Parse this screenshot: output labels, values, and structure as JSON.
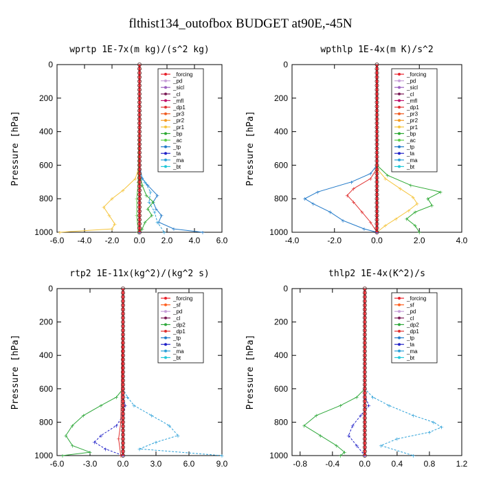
{
  "figure_title": "flthist134_outofbox  BUDGET at90E,-45N",
  "colors": {
    "forcing": "#e8202a",
    "pd": "#c79ed8",
    "sicl": "#9b5fc0",
    "cl": "#7a1a55",
    "mfl": "#c0106a",
    "dp1": "#e03030",
    "pr3": "#f05a20",
    "pr2": "#f59a20",
    "pr1": "#f5c43a",
    "bp": "#2aa830",
    "ac": "#5acd4a",
    "tp": "#1f78c8",
    "ta": "#2020c8",
    "ma": "#2aa0d8",
    "bt": "#20c8d8",
    "sf": "#ff6020",
    "dp2": "#2ea83a"
  },
  "chart_data": [
    {
      "type": "line",
      "title": "wprtp  1E-7x(m kg)/(s^2 kg)",
      "ylabel": "Pressure [hPa]",
      "xlim": [
        -6,
        6
      ],
      "ylim": [
        1000,
        0
      ],
      "xticks": [
        "-6.0",
        "-4.0",
        "-2.0",
        "0.0",
        "2.0",
        "4.0",
        "6.0"
      ],
      "xtick_values": [
        -6,
        -4,
        -2,
        0,
        2,
        4,
        6
      ],
      "yticks": [
        "0",
        "200",
        "400",
        "600",
        "800",
        "1000"
      ],
      "legend": [
        "_forcing",
        "_pd",
        "_sicl",
        "_cl",
        "_mfl",
        "_dp1",
        "_pr3",
        "_pr2",
        "_pr1",
        "_bp",
        "_ac",
        "_tp",
        "_ta",
        "_ma",
        "_bt"
      ],
      "series": [
        {
          "key": "pr1",
          "p": [
            0,
            600,
            680,
            750,
            800,
            850,
            900,
            950,
            980,
            1000
          ],
          "x": [
            0,
            0,
            -0.3,
            -1.2,
            -2.0,
            -2.6,
            -2.2,
            -1.8,
            -2.0,
            -5.8
          ]
        },
        {
          "key": "tp",
          "p": [
            0,
            600,
            680,
            720,
            780,
            820,
            860,
            900,
            940,
            980,
            1000
          ],
          "x": [
            0,
            0,
            0.2,
            0.6,
            1.3,
            1.0,
            1.2,
            1.6,
            1.4,
            2.5,
            4.6
          ]
        },
        {
          "key": "ma",
          "p": [
            0,
            640,
            700,
            760,
            820,
            880,
            940,
            1000
          ],
          "x": [
            0,
            0,
            0.4,
            0.8,
            0.7,
            1.1,
            1.3,
            1.8
          ]
        },
        {
          "key": "bp",
          "p": [
            0,
            650,
            720,
            780,
            820,
            860,
            900,
            940,
            980,
            1000
          ],
          "x": [
            0,
            0,
            0.2,
            0.5,
            1.0,
            0.6,
            0.9,
            0.4,
            0.2,
            0
          ]
        },
        {
          "key": "ac",
          "p": [
            0,
            700,
            800,
            900,
            1000
          ],
          "x": [
            0,
            -0.1,
            -0.2,
            -0.2,
            -0.1
          ]
        },
        {
          "key": "ta",
          "p": [
            0,
            1000
          ],
          "x": [
            0,
            0
          ]
        },
        {
          "key": "forcing",
          "p": [
            0,
            1000
          ],
          "x": [
            0,
            0
          ]
        }
      ]
    },
    {
      "type": "line",
      "title": "wpthlp  1E-4x(m K)/s^2",
      "ylabel": "Pressure [hPa]",
      "xlim": [
        -4,
        4
      ],
      "ylim": [
        1000,
        0
      ],
      "xticks": [
        "-4.0",
        "-2.0",
        "0.0",
        "2.0",
        "4.0"
      ],
      "xtick_values": [
        -4,
        -2,
        0,
        2,
        4
      ],
      "yticks": [
        "0",
        "200",
        "400",
        "600",
        "800",
        "1000"
      ],
      "legend": [
        "_forcing",
        "_pd",
        "_sicl",
        "_cl",
        "_mfl",
        "_dp1",
        "_pr3",
        "_pr2",
        "_pr1",
        "_bp",
        "_ac",
        "_tp",
        "_ta",
        "_ma",
        "_bt"
      ],
      "series": [
        {
          "key": "tp",
          "p": [
            0,
            600,
            650,
            700,
            760,
            800,
            830,
            880,
            930,
            980,
            1000
          ],
          "x": [
            0,
            0,
            -0.3,
            -1.2,
            -2.8,
            -3.4,
            -3.0,
            -2.2,
            -1.6,
            -0.6,
            0
          ]
        },
        {
          "key": "dp1",
          "p": [
            0,
            620,
            680,
            740,
            780,
            820,
            880,
            940,
            1000
          ],
          "x": [
            0,
            0,
            -0.3,
            -1.1,
            -1.4,
            -1.1,
            -0.7,
            -0.3,
            0
          ]
        },
        {
          "key": "bp",
          "p": [
            0,
            600,
            660,
            720,
            760,
            800,
            840,
            880,
            920,
            960,
            1000
          ],
          "x": [
            0,
            0,
            0.5,
            1.6,
            3.0,
            2.4,
            2.6,
            1.8,
            1.4,
            1.8,
            2.0
          ]
        },
        {
          "key": "pr1",
          "p": [
            0,
            620,
            680,
            740,
            790,
            830,
            870,
            920,
            960,
            1000
          ],
          "x": [
            0,
            0,
            0.4,
            1.1,
            1.7,
            1.9,
            1.5,
            0.9,
            0.4,
            0
          ]
        },
        {
          "key": "ta",
          "p": [
            0,
            1000
          ],
          "x": [
            0,
            0
          ]
        },
        {
          "key": "forcing",
          "p": [
            0,
            1000
          ],
          "x": [
            0,
            0
          ]
        }
      ]
    },
    {
      "type": "line",
      "title": "rtp2  1E-11x(kg^2)/(kg^2 s)",
      "ylabel": "Pressure [hPa]",
      "xlim": [
        -6,
        9
      ],
      "ylim": [
        1000,
        0
      ],
      "xticks": [
        "-6.0",
        "-3.0",
        "0.0",
        "3.0",
        "6.0",
        "9.0"
      ],
      "xtick_values": [
        -6,
        -3,
        0,
        3,
        6,
        9
      ],
      "yticks": [
        "0",
        "200",
        "400",
        "600",
        "800",
        "1000"
      ],
      "legend": [
        "_forcing",
        "_sf",
        "_pd",
        "_cl",
        "_dp2",
        "_dp1",
        "_tp",
        "_ta",
        "_ma",
        "_bt"
      ],
      "series": [
        {
          "key": "dp2",
          "p": [
            0,
            600,
            650,
            700,
            760,
            820,
            880,
            940,
            980,
            1000
          ],
          "x": [
            0,
            0,
            -0.6,
            -2.0,
            -3.6,
            -4.6,
            -5.2,
            -4.6,
            -3.0,
            -5.5
          ]
        },
        {
          "key": "ma",
          "p": [
            0,
            600,
            650,
            700,
            760,
            820,
            880,
            920,
            960,
            1000
          ],
          "x": [
            0,
            0,
            0.4,
            1.0,
            2.6,
            4.2,
            5.0,
            3.0,
            1.5,
            9.0
          ]
        },
        {
          "key": "ta",
          "p": [
            0,
            640,
            700,
            760,
            820,
            880,
            920,
            960,
            1000
          ],
          "x": [
            0,
            0,
            0.2,
            0.0,
            -0.6,
            -2.0,
            -2.6,
            -1.6,
            0
          ]
        },
        {
          "key": "dp1",
          "p": [
            0,
            800,
            900,
            1000
          ],
          "x": [
            0,
            -0.2,
            -0.4,
            -0.2
          ]
        },
        {
          "key": "forcing",
          "p": [
            0,
            1000
          ],
          "x": [
            0,
            0
          ]
        }
      ]
    },
    {
      "type": "line",
      "title": "thlp2  1E-4x(K^2)/s",
      "ylabel": "Pressure [hPa]",
      "xlim": [
        -0.9,
        1.2
      ],
      "ylim": [
        1000,
        0
      ],
      "xticks": [
        "-0.8",
        "-0.4",
        "0.0",
        "0.4",
        "0.8",
        "1.2"
      ],
      "xtick_values": [
        -0.8,
        -0.4,
        0,
        0.4,
        0.8,
        1.2
      ],
      "yticks": [
        "0",
        "200",
        "400",
        "600",
        "800",
        "1000"
      ],
      "legend": [
        "_forcing",
        "_sf",
        "_pd",
        "_cl",
        "_dp2",
        "_dp1",
        "_tp",
        "_ta",
        "_ma",
        "_bt"
      ],
      "series": [
        {
          "key": "dp2",
          "p": [
            0,
            600,
            650,
            700,
            760,
            820,
            880,
            940,
            980,
            1000
          ],
          "x": [
            0,
            0,
            -0.1,
            -0.3,
            -0.6,
            -0.75,
            -0.55,
            -0.35,
            -0.25,
            -0.3
          ]
        },
        {
          "key": "ma",
          "p": [
            0,
            600,
            650,
            700,
            760,
            800,
            830,
            860,
            900,
            940,
            1000
          ],
          "x": [
            0,
            0,
            0.1,
            0.3,
            0.6,
            0.85,
            0.95,
            0.8,
            0.4,
            0.2,
            0.6
          ]
        },
        {
          "key": "ta",
          "p": [
            0,
            640,
            700,
            760,
            820,
            880,
            940,
            1000
          ],
          "x": [
            0,
            0,
            0.05,
            -0.05,
            -0.15,
            -0.2,
            -0.1,
            0
          ]
        },
        {
          "key": "forcing",
          "p": [
            0,
            1000
          ],
          "x": [
            0,
            0
          ]
        }
      ]
    }
  ]
}
